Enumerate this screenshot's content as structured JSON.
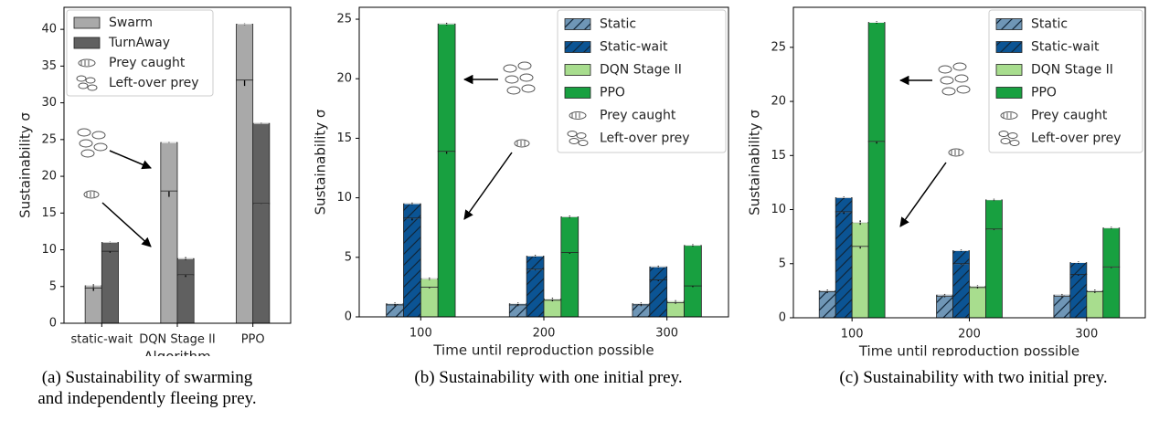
{
  "chart_data": [
    {
      "type": "bar",
      "y_label": "Sustainability σ",
      "x_label": "Algorithm",
      "caption": "(a) Sustainability of swarming and independently fleeing prey.",
      "categories": [
        "static-wait",
        "DQN Stage II",
        "PPO"
      ],
      "segment_names": [
        "Prey caught",
        "Left-over prey"
      ],
      "series": [
        {
          "name": "Swarm",
          "color": "#a9a9a9",
          "hatch": false,
          "values": [
            [
              4.8,
              18.0,
              33.1
            ],
            [
              0.3,
              6.6,
              7.6
            ]
          ],
          "errors": [
            [
              0.4,
              0.8,
              0.8
            ],
            [
              0.2,
              0.1,
              0.1
            ]
          ]
        },
        {
          "name": "TurnAway",
          "color": "#606060",
          "hatch": false,
          "values": [
            [
              9.8,
              6.6,
              16.3
            ],
            [
              1.2,
              2.2,
              10.9
            ]
          ],
          "errors": [
            [
              0.2,
              0.3,
              0.1
            ],
            [
              0.1,
              0.2,
              0.1
            ]
          ]
        }
      ],
      "ylim": [
        0,
        43
      ],
      "yticks": [
        0,
        5,
        10,
        15,
        20,
        25,
        30,
        35,
        40
      ],
      "legend": "upper left"
    },
    {
      "type": "bar",
      "y_label": "Sustainability σ",
      "x_label": "Time until reproduction possible",
      "caption": "(b) Sustainability with one initial prey.",
      "categories": [
        100,
        200,
        300
      ],
      "segment_names": [
        "Prey caught",
        "Left-over prey"
      ],
      "series": [
        {
          "name": "Static",
          "color": "#6f96b6",
          "hatch": true,
          "values": [
            [
              1.0,
              1.0,
              1.0
            ],
            [
              0.1,
              0.1,
              0.1
            ]
          ],
          "errors": [
            [
              0.1,
              0.1,
              0.1
            ],
            [
              0.1,
              0.1,
              0.1
            ]
          ]
        },
        {
          "name": "Static-wait",
          "color": "#0b5494",
          "hatch": true,
          "values": [
            [
              8.3,
              4.0,
              3.1
            ],
            [
              1.2,
              1.1,
              1.1
            ]
          ],
          "errors": [
            [
              0.2,
              0.1,
              0.1
            ],
            [
              0.1,
              0.1,
              0.1
            ]
          ]
        },
        {
          "name": "DQN Stage II",
          "color": "#a8dd8e",
          "hatch": false,
          "values": [
            [
              2.5,
              1.4,
              1.2
            ],
            [
              0.7,
              0.1,
              0.1
            ]
          ],
          "errors": [
            [
              0.1,
              0.1,
              0.1
            ],
            [
              0.1,
              0.1,
              0.1
            ]
          ]
        },
        {
          "name": "PPO",
          "color": "#18a040",
          "hatch": false,
          "values": [
            [
              13.9,
              5.4,
              2.6
            ],
            [
              10.7,
              3.0,
              3.4
            ]
          ],
          "errors": [
            [
              0.2,
              0.1,
              0.1
            ],
            [
              0.1,
              0.1,
              0.1
            ]
          ]
        }
      ],
      "ylim": [
        0,
        26
      ],
      "yticks": [
        0,
        5,
        10,
        15,
        20,
        25
      ],
      "legend": "upper right"
    },
    {
      "type": "bar",
      "y_label": "Sustainability σ",
      "x_label": "Time until reproduction possible",
      "caption": "(c) Sustainability with two initial prey.",
      "categories": [
        100,
        200,
        300
      ],
      "segment_names": [
        "Prey caught",
        "Left-over prey"
      ],
      "series": [
        {
          "name": "Static",
          "color": "#6f96b6",
          "hatch": true,
          "values": [
            [
              2.4,
              2.0,
              2.0
            ],
            [
              0.1,
              0.1,
              0.1
            ]
          ],
          "errors": [
            [
              0.1,
              0.1,
              0.1
            ],
            [
              0.1,
              0.1,
              0.1
            ]
          ]
        },
        {
          "name": "Static-wait",
          "color": "#0b5494",
          "hatch": true,
          "values": [
            [
              9.8,
              5.0,
              4.0
            ],
            [
              1.3,
              1.2,
              1.1
            ]
          ],
          "errors": [
            [
              0.2,
              0.1,
              0.1
            ],
            [
              0.1,
              0.1,
              0.1
            ]
          ]
        },
        {
          "name": "DQN Stage II",
          "color": "#a8dd8e",
          "hatch": false,
          "values": [
            [
              6.6,
              2.8,
              2.4
            ],
            [
              2.2,
              0.1,
              0.1
            ]
          ],
          "errors": [
            [
              0.2,
              0.1,
              0.1
            ],
            [
              0.2,
              0.1,
              0.1
            ]
          ]
        },
        {
          "name": "PPO",
          "color": "#18a040",
          "hatch": false,
          "values": [
            [
              16.3,
              8.2,
              4.7
            ],
            [
              11.0,
              2.7,
              3.6
            ]
          ],
          "errors": [
            [
              0.2,
              0.1,
              0.1
            ],
            [
              0.1,
              0.1,
              0.1
            ]
          ]
        }
      ],
      "ylim": [
        0,
        28.7
      ],
      "yticks": [
        0,
        5,
        10,
        15,
        20,
        25
      ],
      "legend": "upper right"
    }
  ]
}
